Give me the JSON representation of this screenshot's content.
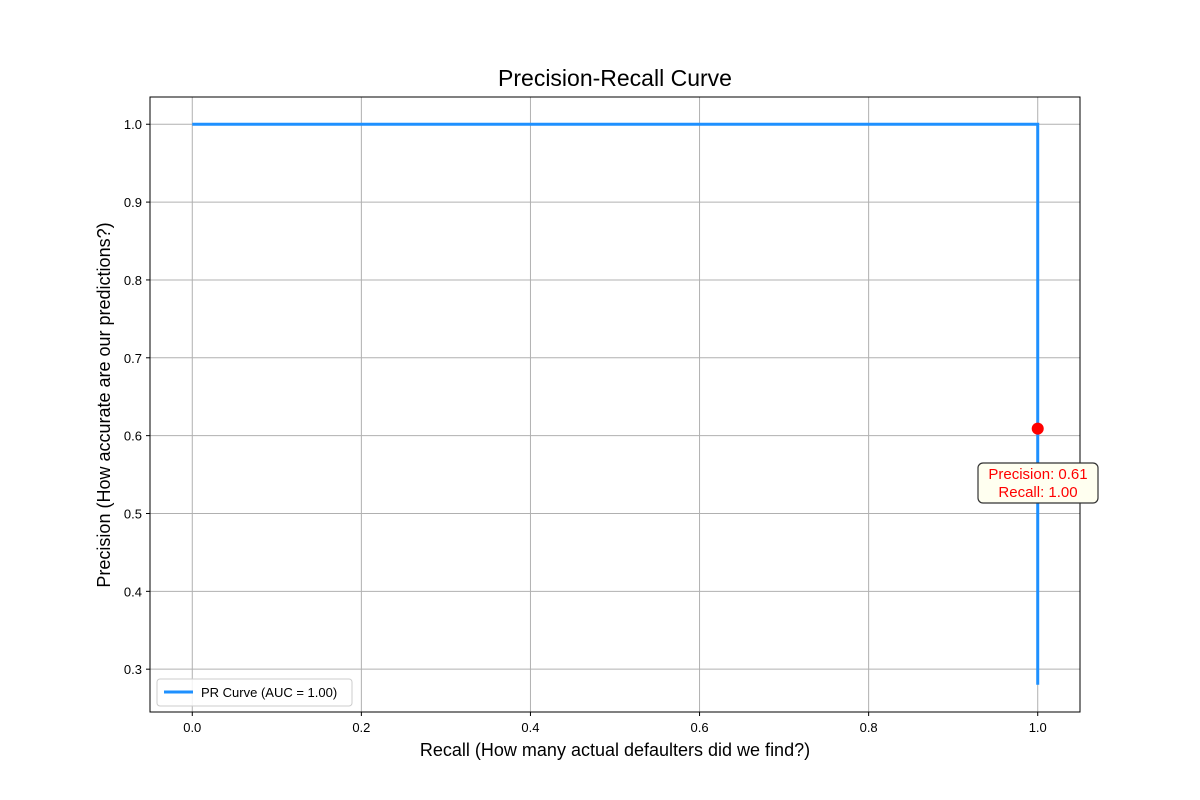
{
  "chart_data": {
    "type": "line",
    "title": "Precision-Recall Curve",
    "xlabel": "Recall (How many actual defaulters did we find?)",
    "ylabel": "Precision (How accurate are our predictions?)",
    "xlim": [
      -0.05,
      1.05
    ],
    "ylim": [
      0.245,
      1.035
    ],
    "xticks": [
      0.0,
      0.2,
      0.4,
      0.6,
      0.8,
      1.0
    ],
    "xtick_labels": [
      "0.0",
      "0.2",
      "0.4",
      "0.6",
      "0.8",
      "1.0"
    ],
    "yticks": [
      0.3,
      0.4,
      0.5,
      0.6,
      0.7,
      0.8,
      0.9,
      1.0
    ],
    "ytick_labels": [
      "0.3",
      "0.4",
      "0.5",
      "0.6",
      "0.7",
      "0.8",
      "0.9",
      "1.0"
    ],
    "grid": true,
    "series": [
      {
        "name": "PR Curve (AUC = 1.00)",
        "color": "#1e90ff",
        "x": [
          0.0,
          1.0,
          1.0
        ],
        "y": [
          1.0,
          1.0,
          0.28
        ]
      }
    ],
    "marker_point": {
      "x": 1.0,
      "y": 0.609,
      "color": "#ff0000"
    },
    "annotation": {
      "line1": "Precision: 0.61",
      "line2": "Recall: 1.00",
      "text_color": "#ff0000",
      "box_fill": "#fffff0",
      "box_edge": "#333333"
    },
    "legend": {
      "label": "PR Curve (AUC = 1.00)",
      "location": "lower-left"
    }
  }
}
